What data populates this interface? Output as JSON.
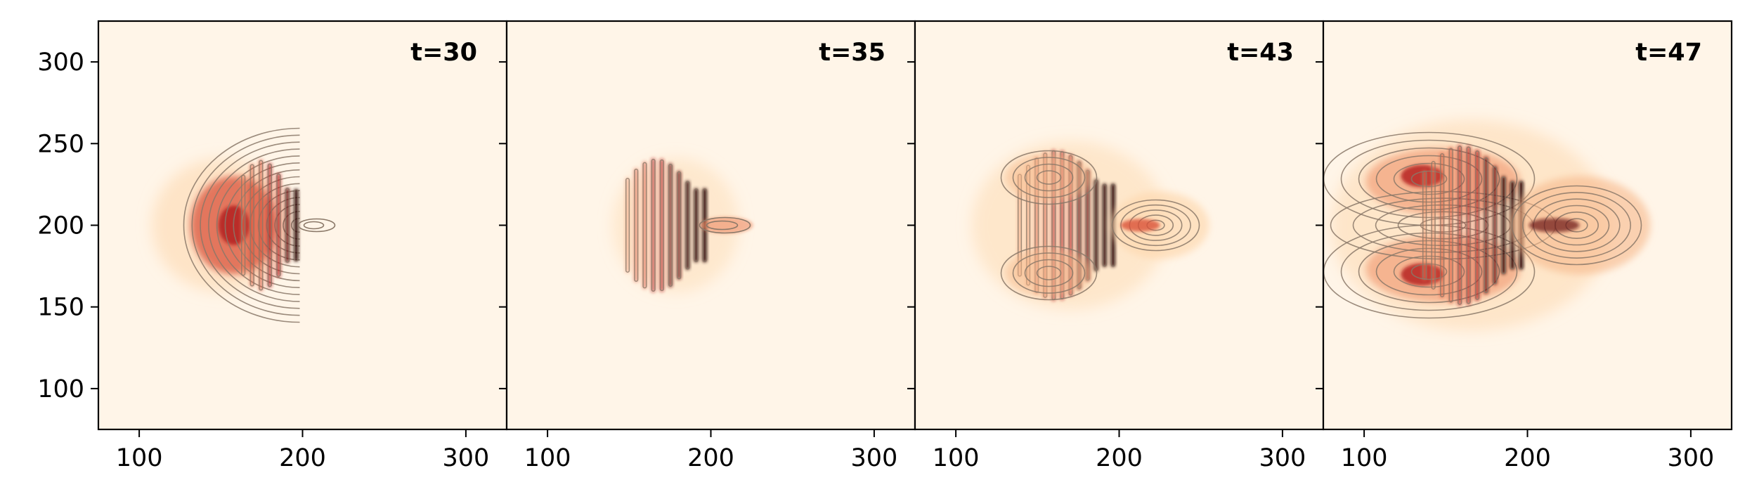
{
  "chart_data": {
    "type": "heatmap",
    "colormap": "OrRd",
    "colors": {
      "background": "#fff5e8",
      "contour": "#8a7868",
      "axis": "#000000"
    },
    "xlim": [
      75,
      325
    ],
    "ylim": [
      75,
      325
    ],
    "xticks": [
      100,
      200,
      300
    ],
    "yticks": [
      100,
      150,
      200,
      250,
      300
    ],
    "grid": false,
    "panels": [
      {
        "title": "t=30",
        "center": [
          200,
          200
        ]
      },
      {
        "title": "t=35",
        "center": [
          200,
          200
        ]
      },
      {
        "title": "t=43",
        "center": [
          200,
          200
        ]
      },
      {
        "title": "t=47",
        "center": [
          200,
          200
        ]
      }
    ]
  }
}
